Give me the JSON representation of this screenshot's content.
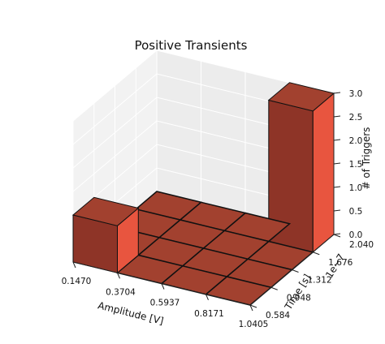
{
  "chart_data": {
    "type": "bar3d",
    "title": "Positive Transients",
    "xlabel": "Amplitude [V]",
    "ylabel": "Time [s]",
    "ylabel_offset": "1e−7",
    "zlabel": "# of Triggers",
    "x_ticks": [
      "0.1470",
      "0.3704",
      "0.5937",
      "0.8171",
      "1.0405"
    ],
    "y_ticks": [
      "0.584",
      "0.948",
      "1.312",
      "1.676",
      "2.040"
    ],
    "z_ticks": [
      "0.0",
      "0.5",
      "1.0",
      "1.5",
      "2.0",
      "2.5",
      "3.0"
    ],
    "zlim": [
      0,
      3
    ],
    "bar_color": "#e8553f",
    "grid": true,
    "bars": [
      {
        "x_bin": 0,
        "y_bin": 0,
        "value": 1
      },
      {
        "x_bin": 3,
        "y_bin": 3,
        "value": 3
      },
      {
        "x_bin": 0,
        "y_bin": 1,
        "value": 0
      },
      {
        "x_bin": 0,
        "y_bin": 2,
        "value": 0
      },
      {
        "x_bin": 0,
        "y_bin": 3,
        "value": 0
      },
      {
        "x_bin": 1,
        "y_bin": 0,
        "value": 0
      },
      {
        "x_bin": 1,
        "y_bin": 1,
        "value": 0
      },
      {
        "x_bin": 1,
        "y_bin": 2,
        "value": 0
      },
      {
        "x_bin": 1,
        "y_bin": 3,
        "value": 0
      },
      {
        "x_bin": 2,
        "y_bin": 0,
        "value": 0
      },
      {
        "x_bin": 2,
        "y_bin": 1,
        "value": 0
      },
      {
        "x_bin": 2,
        "y_bin": 2,
        "value": 0
      },
      {
        "x_bin": 2,
        "y_bin": 3,
        "value": 0
      },
      {
        "x_bin": 3,
        "y_bin": 0,
        "value": 0
      },
      {
        "x_bin": 3,
        "y_bin": 1,
        "value": 0
      },
      {
        "x_bin": 3,
        "y_bin": 2,
        "value": 0
      }
    ]
  }
}
